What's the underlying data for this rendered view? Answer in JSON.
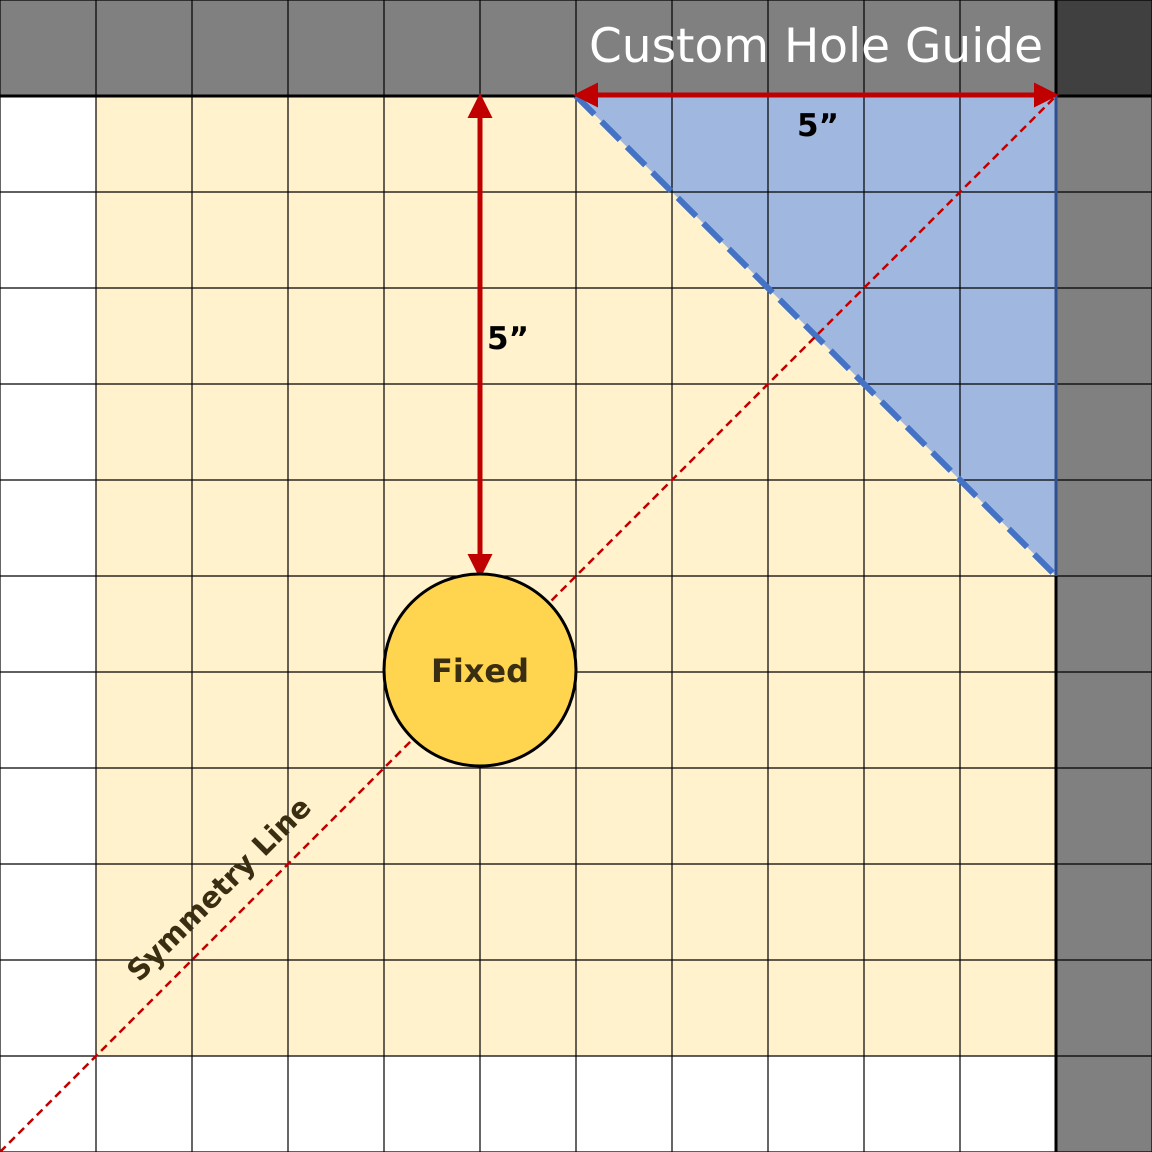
{
  "title": "Custom Hole Guide",
  "horizontal_dimension": "5”",
  "vertical_dimension": "5”",
  "hole_label": "Fixed",
  "symmetry_label": "Symmetry Line",
  "colors": {
    "background": "#000000",
    "grid_line": "#000000",
    "dark_border_cell": "#808080",
    "corner_cell": "#404040",
    "empty_cell": "#ffffff",
    "work_area": "#fff2cc",
    "cut_triangle": "#a0b8e0",
    "cut_edge_dashed": "#4472c4",
    "triangle_side": "#2f4f8f",
    "arrow": "#c00000",
    "symmetry_line": "#c00000",
    "hole_fill": "#ffd54f",
    "hole_stroke": "#000000"
  }
}
